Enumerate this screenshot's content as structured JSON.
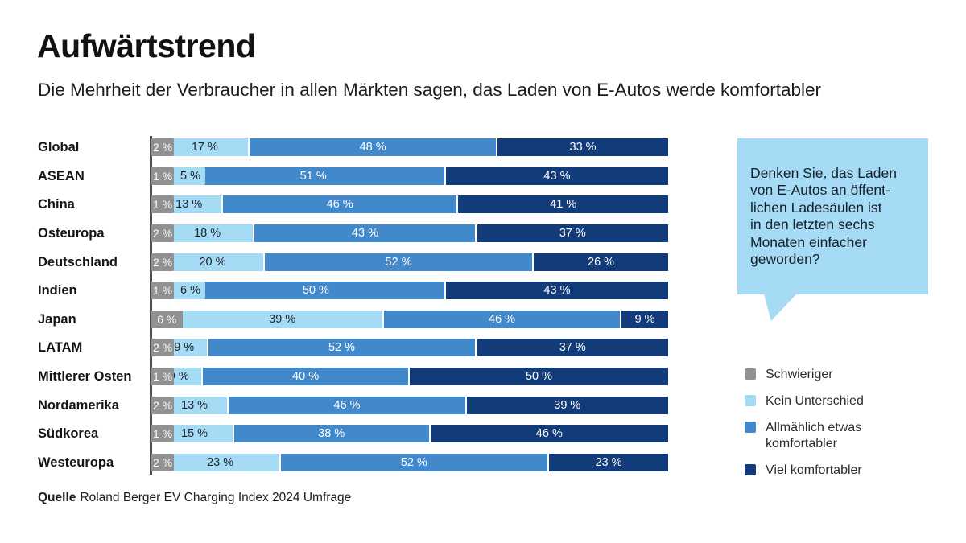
{
  "header": {
    "title": "Aufwärtstrend",
    "subtitle": "Die Mehrheit der Verbraucher in allen Märkten sagen, das Laden von E-Autos werde komfortabler"
  },
  "question_bubble": {
    "lines": [
      "Denken Sie, das Laden",
      "von E-Autos an öffent-",
      "lichen Ladesäulen ist",
      "in den letzten sechs",
      "Monaten einfacher",
      "geworden?"
    ],
    "bg_color": "#A6DBF5"
  },
  "legend": [
    {
      "label": "Schwieriger",
      "color": "#8F9193"
    },
    {
      "label": "Kein Unterschied",
      "color": "#A6DBF5"
    },
    {
      "label": "Allmählich etwas komfortabler",
      "color": "#4189CB"
    },
    {
      "label": "Viel komfortabler",
      "color": "#113B79"
    }
  ],
  "footer": {
    "source_label": "Quelle",
    "source_text": "Roland Berger EV Charging Index 2024 Umfrage"
  },
  "chart_data": {
    "type": "bar",
    "stacked": true,
    "orientation": "horizontal",
    "unit": "%",
    "xlim": [
      0,
      100
    ],
    "grid": false,
    "legend_position": "right",
    "categories": [
      "Global",
      "ASEAN",
      "China",
      "Osteuropa",
      "Deutschland",
      "Indien",
      "Japan",
      "LATAM",
      "Mittlerer Osten",
      "Nordamerika",
      "Südkorea",
      "Westeuropa"
    ],
    "series": [
      {
        "name": "Schwieriger",
        "color": "#8F9193",
        "values": [
          2,
          1,
          1,
          2,
          2,
          1,
          6,
          2,
          1,
          2,
          1,
          2
        ]
      },
      {
        "name": "Kein Unterschied",
        "color": "#A6DBF5",
        "values": [
          17,
          5,
          13,
          18,
          20,
          6,
          39,
          9,
          9,
          13,
          15,
          23
        ]
      },
      {
        "name": "Allmählich etwas komfortabler",
        "color": "#4189CB",
        "values": [
          48,
          51,
          46,
          43,
          52,
          50,
          46,
          52,
          40,
          46,
          38,
          52
        ]
      },
      {
        "name": "Viel komfortabler",
        "color": "#113B79",
        "values": [
          33,
          43,
          41,
          37,
          26,
          43,
          9,
          37,
          50,
          39,
          46,
          23
        ]
      }
    ],
    "colors": {
      "axis": "#4D4D4D",
      "bar_label_on_dark": "#FFFFFF",
      "bar_label_on_light": "#1D232B"
    }
  }
}
